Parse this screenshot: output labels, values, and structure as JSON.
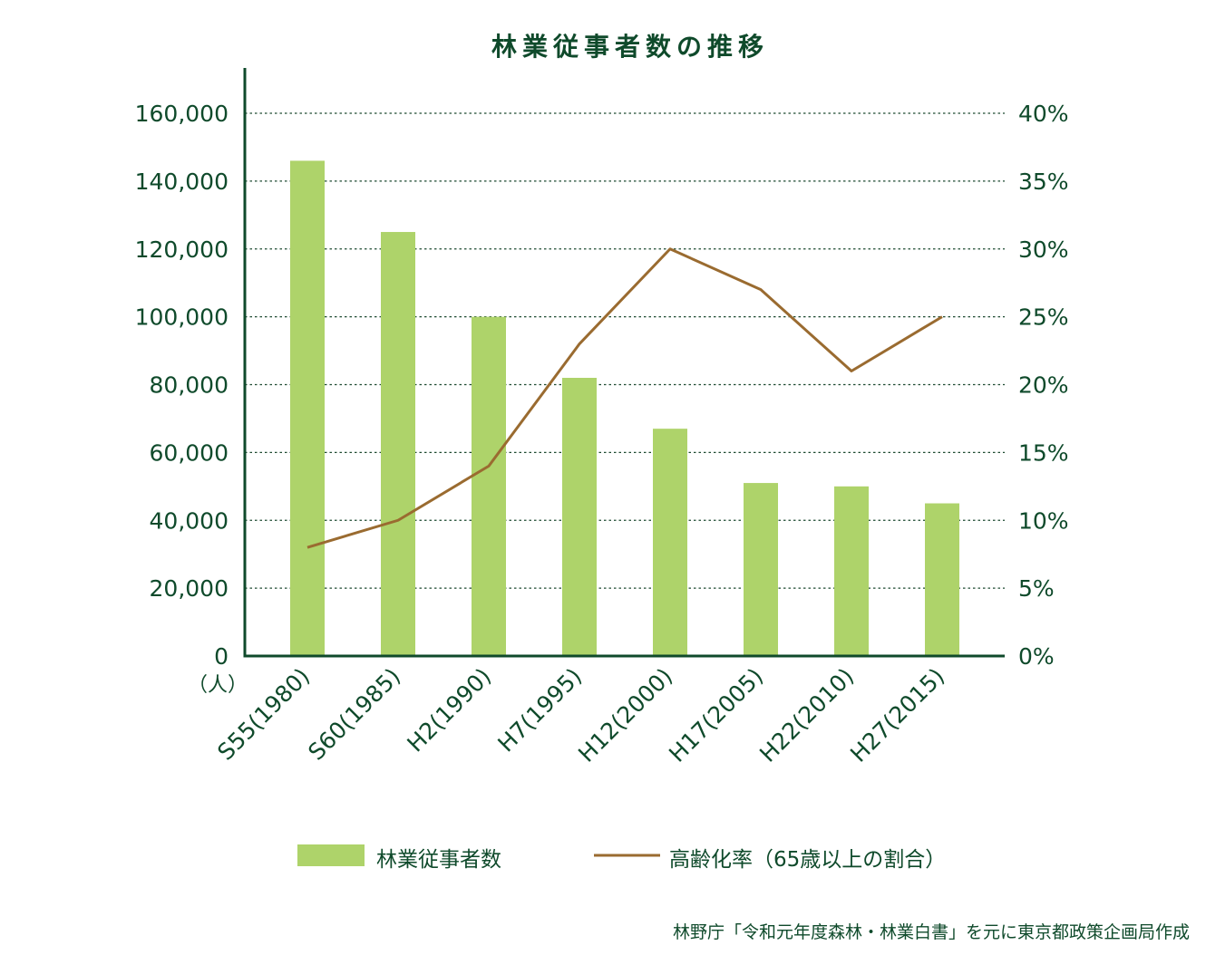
{
  "title": "林業従事者数の推移",
  "unit_label": "（人）",
  "source": "林野庁「令和元年度森林・林業白書」を元に東京都政策企画局作成",
  "colors": {
    "bar": "#aed36a",
    "line": "#9a6b30",
    "axis": "#0f4a2b",
    "text": "#0f4a2b"
  },
  "chart_data": {
    "type": "bar+line",
    "title": "林業従事者数の推移",
    "categories": [
      "S55(1980)",
      "S60(1985)",
      "H2(1990)",
      "H7(1995)",
      "H12(2000)",
      "H17(2005)",
      "H22(2010)",
      "H27(2015)"
    ],
    "series": [
      {
        "name": "林業従事者数",
        "type": "bar",
        "axis": "left",
        "values": [
          146000,
          125000,
          100000,
          82000,
          67000,
          51000,
          50000,
          45000
        ]
      },
      {
        "name": "高齢化率（65歳以上の割合）",
        "type": "line",
        "axis": "right",
        "values": [
          8,
          10,
          14,
          23,
          30,
          27,
          21,
          25
        ]
      }
    ],
    "left_axis": {
      "label": "（人）",
      "ylim": [
        0,
        160000
      ],
      "ticks": [
        "0",
        "20,000",
        "40,000",
        "60,000",
        "80,000",
        "100,000",
        "120,000",
        "140,000",
        "160,000"
      ]
    },
    "right_axis": {
      "ylim": [
        0,
        40
      ],
      "ticks": [
        "0%",
        "5%",
        "10%",
        "15%",
        "20%",
        "25%",
        "30%",
        "35%",
        "40%"
      ]
    },
    "grid": true,
    "legend_position": "bottom"
  }
}
